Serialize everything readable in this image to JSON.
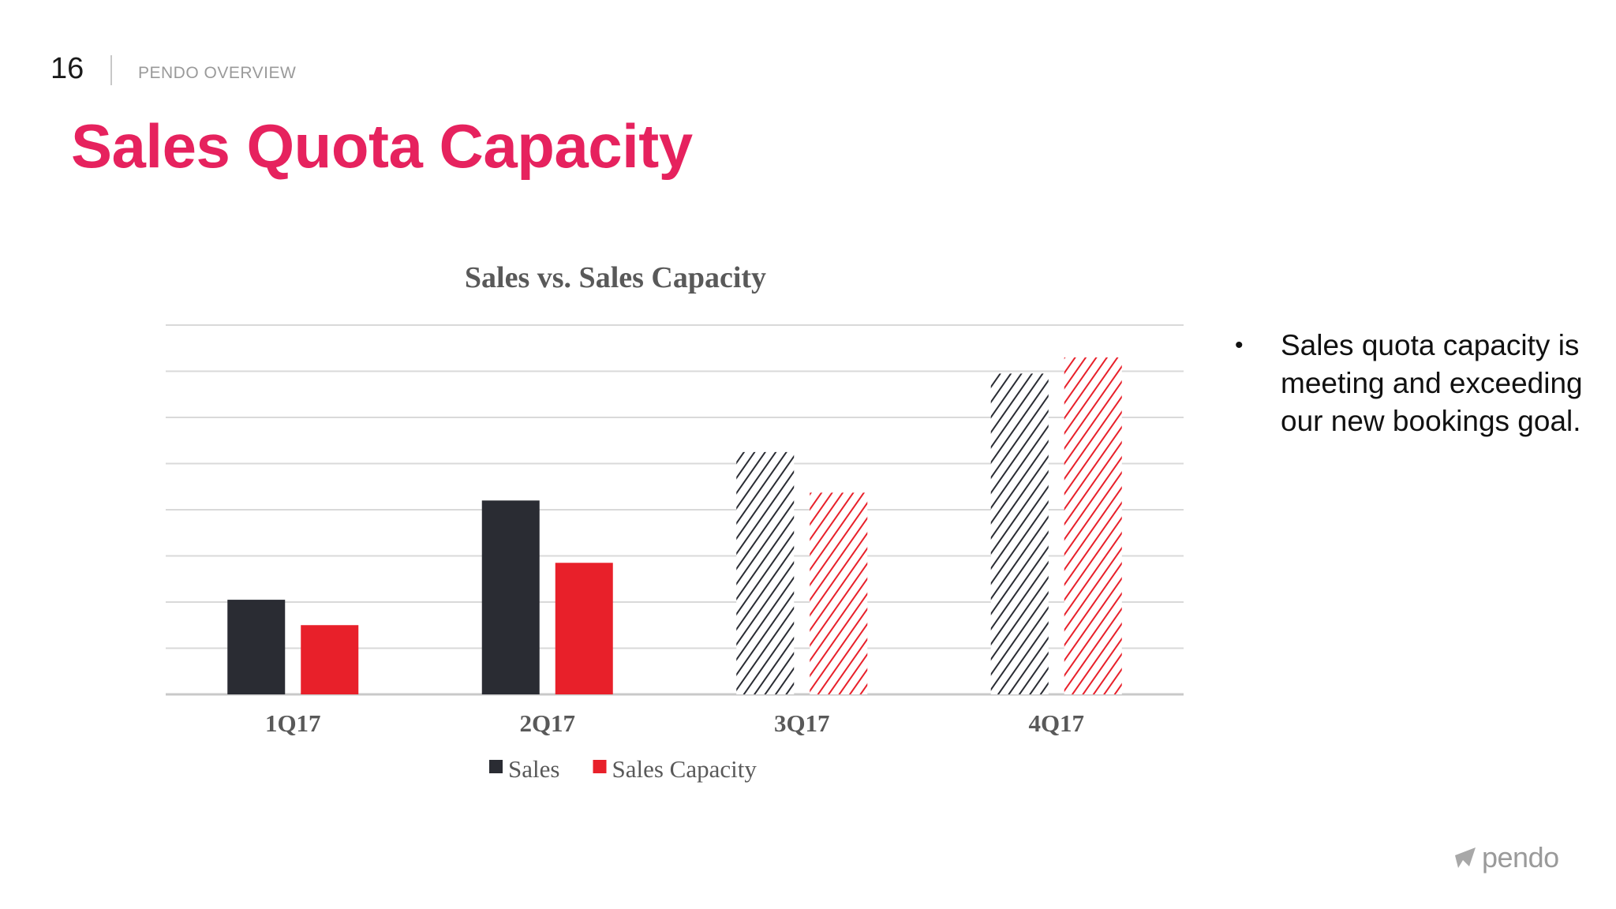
{
  "slide": {
    "number": "16",
    "section": "PENDO OVERVIEW",
    "title": "Sales Quota Capacity"
  },
  "bullets": [
    "Sales quota capacity is meeting and exceeding our new bookings goal."
  ],
  "logo": {
    "text": "pendo",
    "icon": "pendo-logo-icon"
  },
  "colors": {
    "title": "#e6225e",
    "sales": "#2a2c33",
    "sales_capacity": "#e8202a",
    "gridline": "#d9d9d9"
  },
  "chart_data": {
    "type": "bar",
    "title": "Sales vs. Sales Capacity",
    "categories": [
      "1Q17",
      "2Q17",
      "3Q17",
      "4Q17"
    ],
    "series": [
      {
        "name": "Sales",
        "values": [
          2.05,
          4.2,
          5.25,
          6.95
        ],
        "pattern": [
          "solid",
          "solid",
          "hatched",
          "hatched"
        ]
      },
      {
        "name": "Sales Capacity",
        "values": [
          1.5,
          2.85,
          4.37,
          7.3
        ],
        "pattern": [
          "solid",
          "solid",
          "hatched",
          "hatched"
        ]
      }
    ],
    "ylim": [
      0,
      8
    ],
    "y_ticks_shown": false,
    "grid": true,
    "legend": "bottom"
  }
}
